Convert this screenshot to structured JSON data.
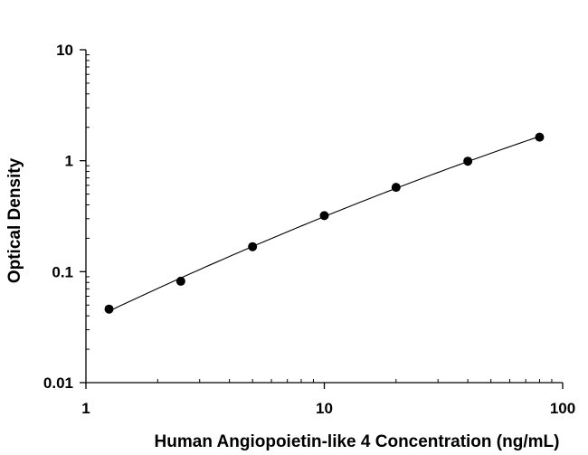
{
  "chart_data": {
    "type": "scatter",
    "title": "",
    "xlabel": "Human Angiopoietin-like 4 Concentration (ng/mL)",
    "ylabel": "Optical Density",
    "xscale": "log",
    "yscale": "log",
    "xlim": [
      1,
      100
    ],
    "ylim": [
      0.01,
      10
    ],
    "x_ticks": [
      1,
      10,
      100
    ],
    "x_tick_labels": [
      "1",
      "10",
      "100"
    ],
    "y_ticks": [
      0.01,
      0.1,
      1,
      10
    ],
    "y_tick_labels": [
      "0.01",
      "0.1",
      "1",
      "10"
    ],
    "grid": false,
    "series": [
      {
        "points": [
          {
            "x": 1.25,
            "y": 0.046
          },
          {
            "x": 2.5,
            "y": 0.082
          },
          {
            "x": 5,
            "y": 0.168
          },
          {
            "x": 10,
            "y": 0.32
          },
          {
            "x": 20,
            "y": 0.575
          },
          {
            "x": 40,
            "y": 0.99
          },
          {
            "x": 80,
            "y": 1.63
          }
        ],
        "fit_curve": true
      }
    ],
    "colors": {
      "marker": "#000000",
      "line": "#000000",
      "axis": "#000000"
    }
  }
}
